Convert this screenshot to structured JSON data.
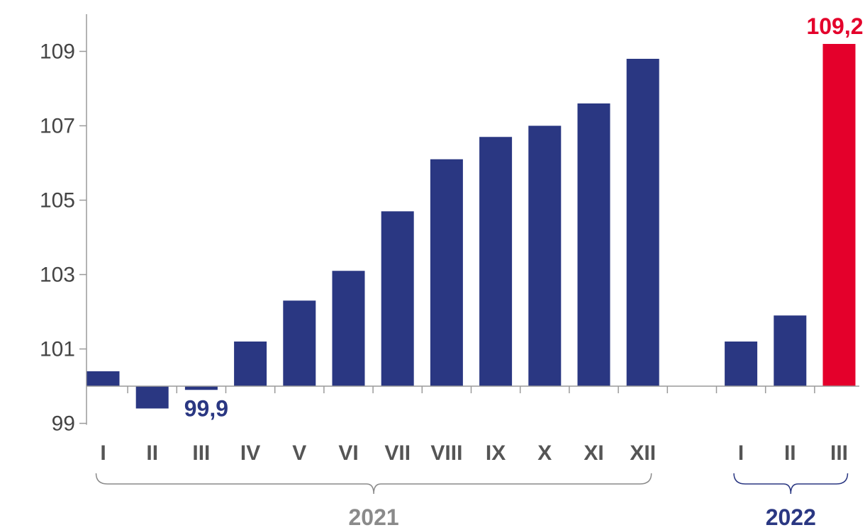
{
  "chart_data": {
    "type": "bar",
    "categories": [
      "I",
      "II",
      "III",
      "IV",
      "V",
      "VI",
      "VII",
      "VIII",
      "IX",
      "X",
      "XI",
      "XII",
      "I",
      "II",
      "III"
    ],
    "groups": [
      {
        "label": "2021",
        "start": 0,
        "end": 11,
        "color": "#8a8a8a"
      },
      {
        "label": "2022",
        "start": 12,
        "end": 14,
        "color": "#2a3782"
      }
    ],
    "values": [
      100.4,
      99.4,
      99.9,
      101.2,
      102.3,
      103.1,
      104.7,
      106.1,
      106.7,
      107.0,
      107.6,
      108.8,
      101.2,
      101.9,
      109.2
    ],
    "baseline": 100,
    "ylim": [
      99,
      110
    ],
    "yticks": [
      99,
      101,
      103,
      105,
      107,
      109
    ],
    "title": "",
    "xlabel": "",
    "ylabel": "",
    "colors": {
      "default": "#2a3782",
      "highlight": "#e4002b"
    },
    "highlight_index": 14,
    "data_labels": [
      {
        "index": 2,
        "text": "99,9",
        "color": "#2a3782"
      },
      {
        "index": 14,
        "text": "109,2",
        "color": "#e4002b"
      }
    ]
  }
}
